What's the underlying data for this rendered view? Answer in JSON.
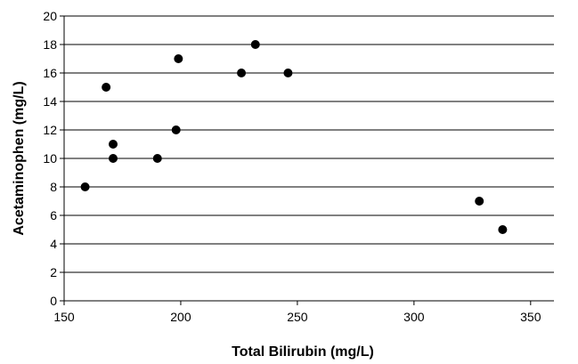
{
  "chart_data": {
    "type": "scatter",
    "title": "",
    "xlabel": "Total Bilirubin (mg/L)",
    "ylabel": "Acetaminophen (mg/L)",
    "xlim": [
      150,
      360
    ],
    "ylim": [
      0,
      20
    ],
    "xticks": [
      150,
      200,
      250,
      300,
      350
    ],
    "yticks": [
      0,
      2,
      4,
      6,
      8,
      10,
      12,
      14,
      16,
      18,
      20
    ],
    "grid": "horizontal",
    "legend": "none",
    "marker_color": "#000000",
    "grid_color": "#000000",
    "points": [
      {
        "x": 159,
        "y": 8
      },
      {
        "x": 168,
        "y": 15
      },
      {
        "x": 171,
        "y": 11
      },
      {
        "x": 171,
        "y": 10
      },
      {
        "x": 190,
        "y": 10
      },
      {
        "x": 198,
        "y": 12
      },
      {
        "x": 199,
        "y": 17
      },
      {
        "x": 226,
        "y": 16
      },
      {
        "x": 232,
        "y": 18
      },
      {
        "x": 246,
        "y": 16
      },
      {
        "x": 328,
        "y": 7
      },
      {
        "x": 338,
        "y": 5
      }
    ]
  }
}
